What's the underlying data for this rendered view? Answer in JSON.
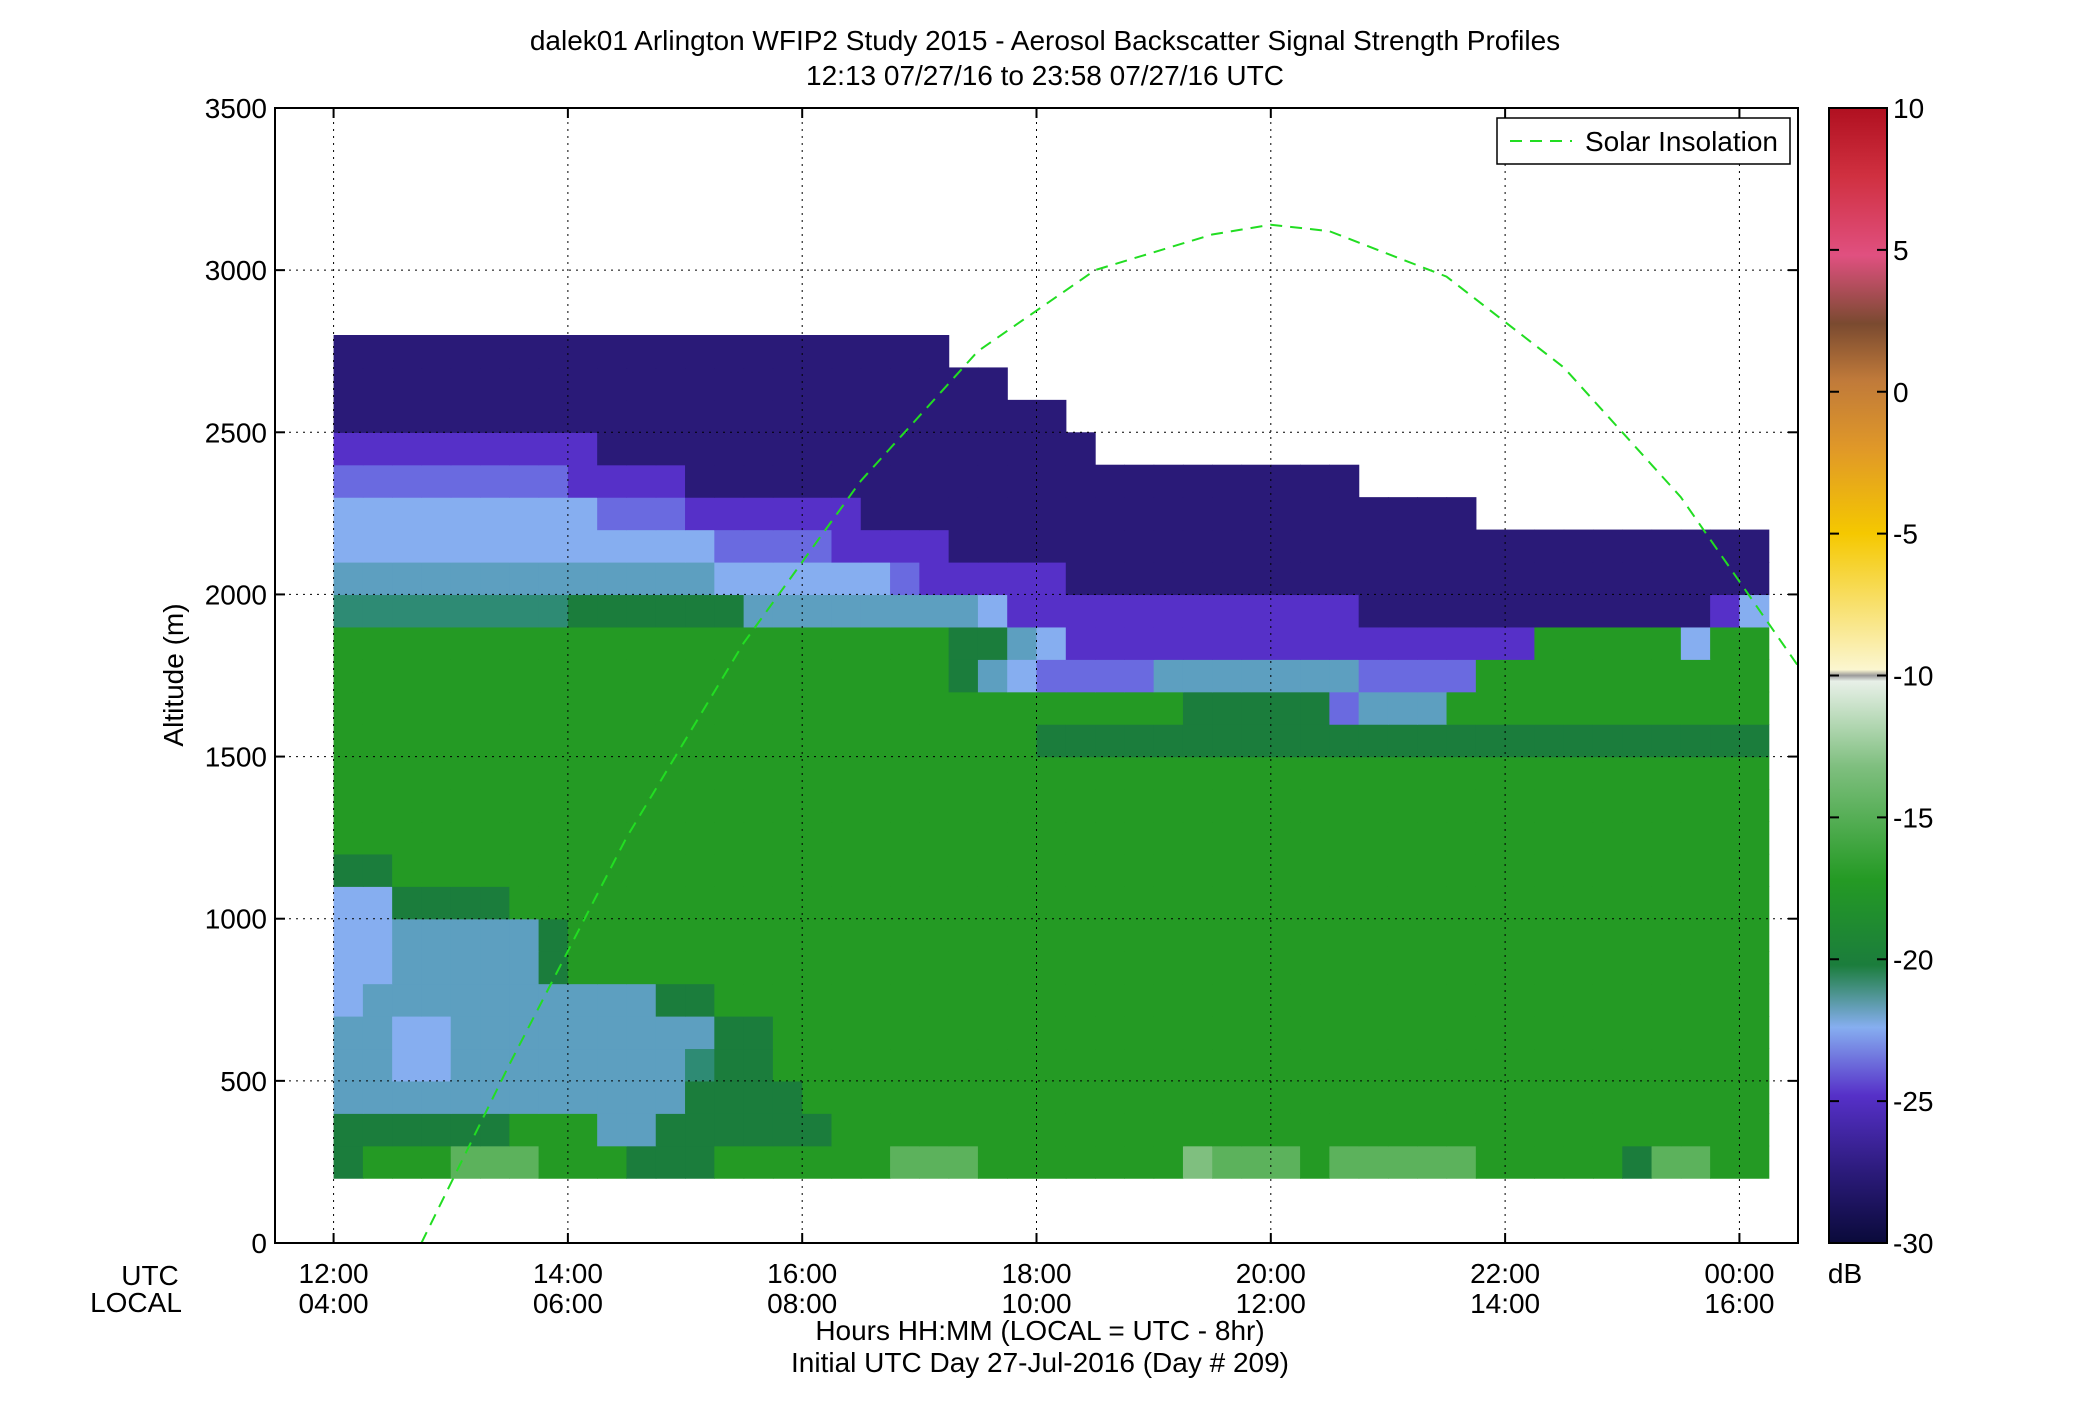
{
  "chart_data": {
    "type": "heatmap",
    "title": "dalek01 Arlington WFIP2 Study 2015 - Aerosol Backscatter Signal Strength Profiles",
    "subtitle": "12:13 07/27/16 to 23:58 07/27/16  UTC",
    "ylabel": "Altitude (m)",
    "ylim": [
      0,
      3500
    ],
    "yticks": [
      0,
      500,
      1000,
      1500,
      2000,
      2500,
      3000,
      3500
    ],
    "xlim_hours": [
      11.5,
      24.5
    ],
    "xticks_hours": [
      12,
      14,
      16,
      18,
      20,
      22,
      24
    ],
    "xticks_utc": [
      "12:00",
      "14:00",
      "16:00",
      "18:00",
      "20:00",
      "22:00",
      "00:00"
    ],
    "xticks_local": [
      "04:00",
      "06:00",
      "08:00",
      "10:00",
      "12:00",
      "14:00",
      "16:00"
    ],
    "xrow_utc": "UTC",
    "xrow_local": "LOCAL",
    "xlabel": "Hours HH:MM  (LOCAL = UTC - 8hr)",
    "xlabel2": "Initial UTC Day 27-Jul-2016 (Day # 209)",
    "grid": true,
    "legend": {
      "position": "top-right",
      "entries": [
        "Solar Insolation"
      ]
    },
    "colorbar": {
      "label": "dB",
      "range": [
        -30,
        10
      ],
      "ticks": [
        10,
        5,
        0,
        -5,
        -10,
        -15,
        -20,
        -25,
        -30
      ]
    },
    "grid_x_start_hours": 12.0,
    "grid_x_step_hours": 0.25,
    "grid_y_start_m": 200,
    "grid_y_step_m": 100,
    "rows_from_ground": [
      "HGGGFFFGGGHHHGGGGGGFFFGGGGGGGEFFFGFFFFFGGGGGHFFGG",
      "HHHHHHGGGJJHHHHHHGGGGGGGGGGGGGGGGGGGGGGGGGGGGGGGG",
      "JJJJJJJJJJJJHHHHGGGGGGGGGGGGGGGGGGGGGGGGGGGGGGGGG",
      "JJKKJJJJJJJJIHHGGGGGGGGGGGGGGGGGGGGGGGGGGGGGGGGGG",
      "JJKKJJJJJJJJJHHGGGGGGGGGGGGGGGGGGGGGGGGGGGGGGGGGG",
      "KJJJJJJJJJJHHGGGGGGGGGGGGGGGGGGGGGGGGGGGGGGGGGGGG",
      "KKJJJJJHGGGGGGGGGGGGGGGGGGGGGGGGGGGGGGGGGGGGGGGGG",
      "KKJJJJJHGGGGGGGGGGGGGGGGGGGGGGGGGGGGGGGGGGGGGGGGG",
      "KKHHHHGGGGGGGGGGGGGGGGGGGGGGGGGGGGGGGGGGGGGGGGGGG",
      "HHGGGGGGGGGGGGGGGGGGGGGGGGGGGGGGGGGGGGGGGGGGGGGGG",
      "GGGGGGGGGGGGGGGGGGGGGGGGGGGGGGGGGGGGGGGGGGGGGGGGG",
      "GGGGGGGGGGGGGGGGGGGGGGGGGGGGGGGGGGGGGGGGGGGGGGGGG",
      "GGGGGGGGGGGGGGGGGGGGGGGGGGGGGGGGGGGGGGGGGGGGGGGGG",
      "GGGGGGGGGGGGGGGGGGGGGGGGHHHHHHHHHHHHHHHHHHHHHHHHH",
      "GGGGGGGGGGGGGGGGGGGGGGGGGGGGGHHHHHLJJJGGGGGGGGGGG",
      "GGGGGGGGGGGGGGGGGGGGGHJKLLLLJJJJJJJLLLLGGGGGGGGGG",
      "GGGGGGGGGGGGGGGGGGGGGHHJKMMMMMMMMMMMMMMMMGGGGGKGG",
      "IIIIIIIIHHHHHHJJJJJJJJKMMMMMMMMMMMMNNNNNNNNNNNNMK",
      "JJJJJJJJJJJJJKKKKKKLMMMMMNNNNNNNNNNNNNNNNNNNNNNNN",
      "KKKKKKKKKKKKKLLLLMMMMNNNNNNNNNNNNNNNNNNNNNNNNNNNN",
      "KKKKKKKKKLLLMMMMMMNNNNNNNNNNNNNNNNNNNNN..........",
      "LLLLLLLLMMMMNNNNNNNNNNNNNNNNNNNNNNN..............",
      "MMMMMMMMMNNNNNNNNNNNNNNNNN.......................",
      "NNNNNNNNNNNNNNNNNNNNNNNNN........................",
      "NNNNNNNNNNNNNNNNNNNNNNN..........................",
      "NNNNNNNNNNNNNNNNNNNNN............................"
    ],
    "level_colors": {
      "E": "#7fbf7f",
      "F": "#5cb25c",
      "G": "#249a24",
      "H": "#1b7d3c",
      "I": "#2e8b74",
      "J": "#5d9fc0",
      "K": "#86aef0",
      "L": "#6a6ae0",
      "M": "#5630c8",
      "N": "#2a1a78"
    },
    "solar_curve": {
      "name": "Solar Insolation",
      "color": "#22dd22",
      "hours": [
        12.75,
        13.5,
        14.5,
        15.5,
        16.5,
        17.5,
        18.5,
        19.5,
        20.0,
        20.5,
        21.5,
        22.5,
        23.5,
        24.5
      ],
      "altitude_m": [
        0,
        550,
        1250,
        1850,
        2350,
        2750,
        3000,
        3110,
        3140,
        3120,
        2980,
        2700,
        2300,
        1780
      ]
    }
  }
}
